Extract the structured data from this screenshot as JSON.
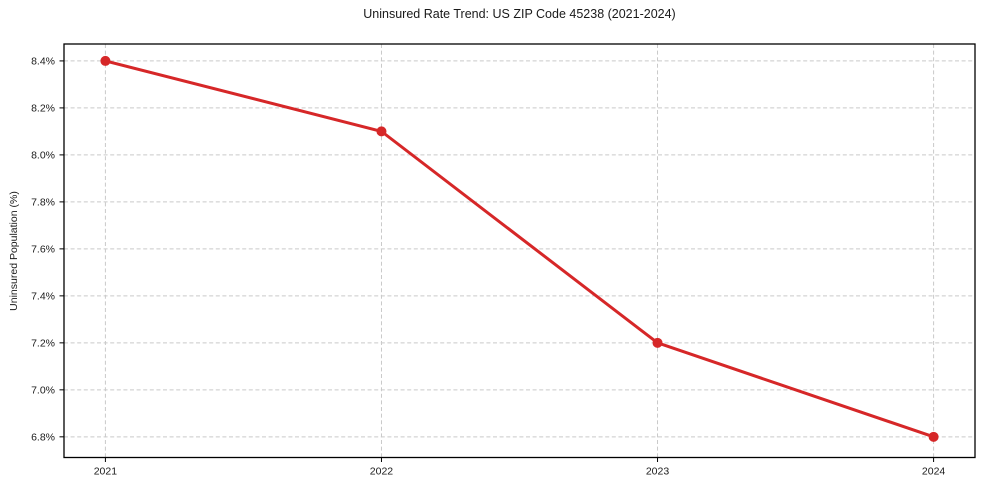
{
  "chart_data": {
    "type": "line",
    "title": "Uninsured Rate Trend: US ZIP Code 45238 (2021-2024)",
    "xlabel": "",
    "ylabel": "Uninsured Population (%)",
    "x": [
      2021,
      2022,
      2023,
      2024
    ],
    "x_labels": [
      "2021",
      "2022",
      "2023",
      "2024"
    ],
    "series": [
      {
        "name": "Uninsured Rate",
        "values": [
          8.4,
          8.1,
          7.2,
          6.8
        ]
      }
    ],
    "value_labels": [
      "8.4%",
      "8.1%",
      "7.2%",
      "6.8%"
    ],
    "yticks": [
      6.8,
      7.0,
      7.2,
      7.4,
      7.6,
      7.8,
      8.0,
      8.2,
      8.4
    ],
    "ytick_labels": [
      "6.8%",
      "7.0%",
      "7.2%",
      "7.4%",
      "7.6%",
      "7.8%",
      "8.0%",
      "8.2%",
      "8.4%"
    ],
    "xlim": [
      2020.85,
      2024.15
    ],
    "ylim": [
      6.712,
      8.472
    ],
    "grid": true,
    "grid_style": "dashed",
    "legend": "none",
    "colors": {
      "line": "#d62728",
      "marker": "#d62728",
      "grid": "#c9c9c9",
      "frame": "#000000",
      "text": "#1a1a1a",
      "background": "#ffffff"
    }
  }
}
